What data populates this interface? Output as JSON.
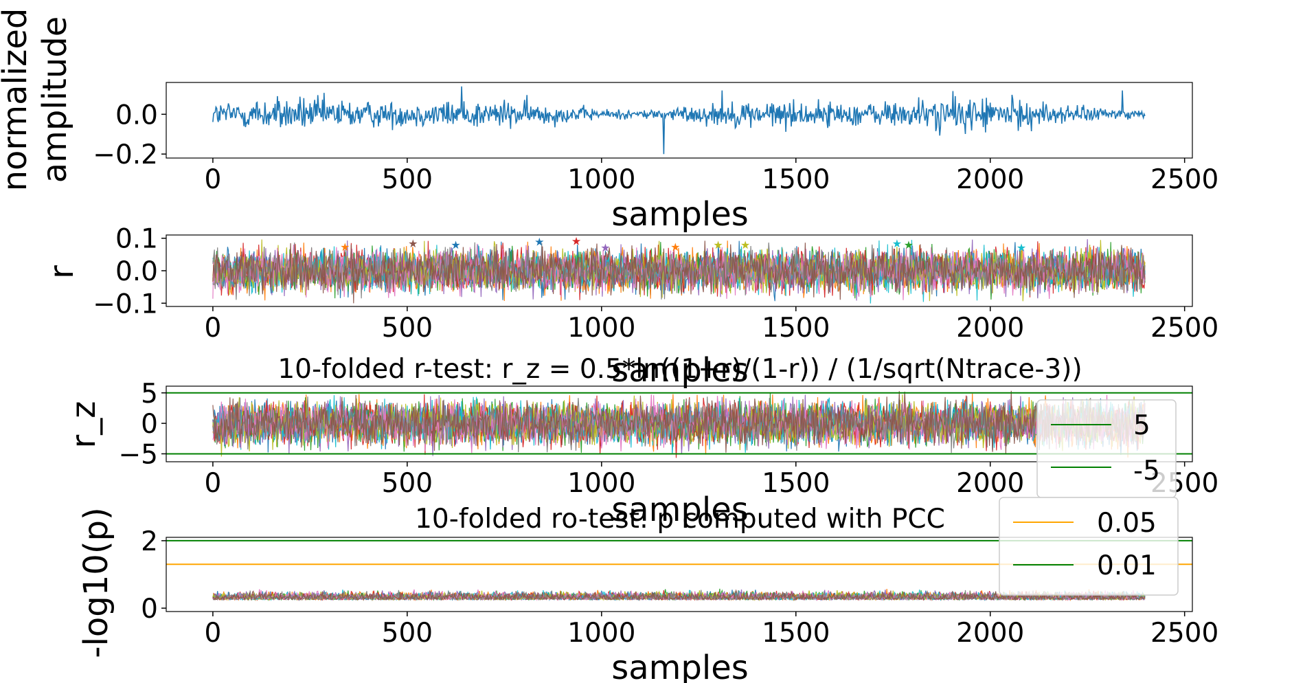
{
  "chart_data": [
    {
      "type": "line",
      "title": "",
      "xlabel": "samples",
      "ylabel": "normalized\namplitude",
      "xlim": [
        -120,
        2520
      ],
      "ylim": [
        -0.22,
        0.16
      ],
      "xticks": [
        "0",
        "500",
        "1000",
        "1500",
        "2000",
        "2500"
      ],
      "yticks": [
        "0.0",
        "−0.2"
      ],
      "series": [
        {
          "color": "#1f77b4",
          "n_samples": 2400,
          "noise_amplitude": 0.045,
          "spikes": [
            {
              "x": 640,
              "y": 0.14
            },
            {
              "x": 1160,
              "y": -0.2
            },
            {
              "x": 1310,
              "y": 0.12
            },
            {
              "x": 2340,
              "y": 0.12
            }
          ]
        }
      ]
    },
    {
      "type": "line",
      "title": "",
      "xlabel": "samples",
      "ylabel": "r",
      "xlim": [
        -120,
        2520
      ],
      "ylim": [
        -0.11,
        0.11
      ],
      "xticks": [
        "0",
        "500",
        "1000",
        "1500",
        "2000",
        "2500"
      ],
      "yticks": [
        "0.1",
        "0.0",
        "−0.1"
      ],
      "series_count": 10,
      "n_samples": 2400,
      "noise_amplitude": 0.055,
      "markers": [
        {
          "x": 340,
          "y": 0.074,
          "color": "#ff7f0e"
        },
        {
          "x": 515,
          "y": 0.085,
          "color": "#8c564b"
        },
        {
          "x": 625,
          "y": 0.08,
          "color": "#1f77b4"
        },
        {
          "x": 840,
          "y": 0.09,
          "color": "#1f77b4"
        },
        {
          "x": 935,
          "y": 0.092,
          "color": "#d62728"
        },
        {
          "x": 1010,
          "y": 0.072,
          "color": "#9467bd"
        },
        {
          "x": 1190,
          "y": 0.074,
          "color": "#ff7f0e"
        },
        {
          "x": 1300,
          "y": 0.08,
          "color": "#bcbd22"
        },
        {
          "x": 1370,
          "y": 0.08,
          "color": "#bcbd22"
        },
        {
          "x": 1760,
          "y": 0.085,
          "color": "#17becf"
        },
        {
          "x": 1790,
          "y": 0.08,
          "color": "#2ca02c"
        },
        {
          "x": 2080,
          "y": 0.072,
          "color": "#17becf"
        }
      ]
    },
    {
      "type": "line",
      "title": "10-folded r-test: r_z = 0.5*ln((1+r)/(1-r)) / (1/sqrt(Ntrace-3))",
      "xlabel": "samples",
      "ylabel": "r_z",
      "xlim": [
        -120,
        2520
      ],
      "ylim": [
        -6.3,
        6.1
      ],
      "xticks": [
        "0",
        "500",
        "1000",
        "1500",
        "2000",
        "2500"
      ],
      "yticks": [
        "5",
        "0",
        "−5"
      ],
      "series_count": 10,
      "n_samples": 2400,
      "noise_amplitude": 3.0,
      "hlines": [
        {
          "y": 5,
          "color": "#008000"
        },
        {
          "y": -5,
          "color": "#008000"
        }
      ],
      "legend": {
        "placement": "right",
        "entries": [
          {
            "label": "5",
            "color": "#008000"
          },
          {
            "label": "-5",
            "color": "#008000"
          }
        ]
      }
    },
    {
      "type": "line",
      "title": "10-folded ro-test: p computed with PCC",
      "xlabel": "samples",
      "ylabel": "-log10(p)",
      "xlim": [
        -120,
        2520
      ],
      "ylim": [
        -0.1,
        2.1
      ],
      "xticks": [
        "0",
        "500",
        "1000",
        "1500",
        "2000",
        "2500"
      ],
      "yticks": [
        "2",
        "0"
      ],
      "series_count": 10,
      "n_samples": 2400,
      "base_value": 0.3,
      "noise_amplitude": 0.25,
      "hlines": [
        {
          "y": 1.301,
          "color": "#ffa500"
        },
        {
          "y": 2.0,
          "color": "#008000"
        }
      ],
      "legend": {
        "placement": "top-right",
        "entries": [
          {
            "label": "0.05",
            "color": "#ffa500"
          },
          {
            "label": "0.01",
            "color": "#008000"
          }
        ]
      }
    }
  ],
  "palette": [
    "#1f77b4",
    "#ff7f0e",
    "#2ca02c",
    "#d62728",
    "#9467bd",
    "#17becf",
    "#bcbd22",
    "#e377c2",
    "#7f7f7f",
    "#8c564b"
  ]
}
